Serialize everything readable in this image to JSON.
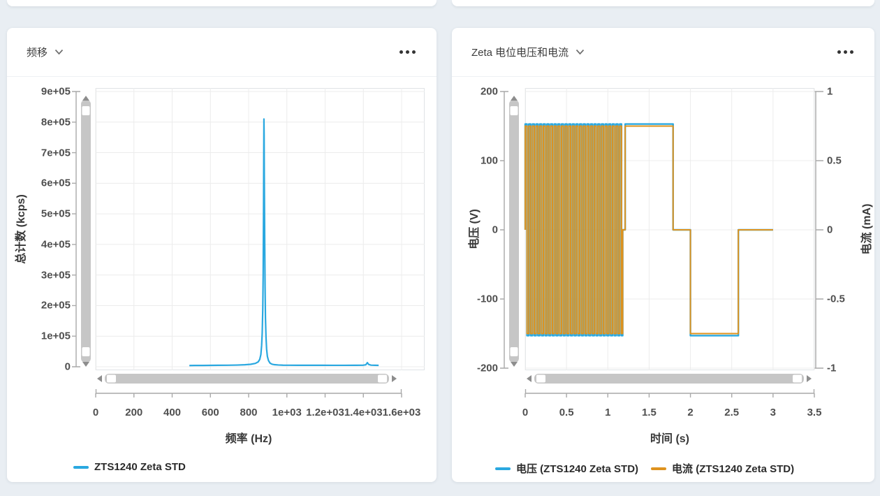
{
  "page": {
    "background": "#e9eef3",
    "card_background": "#ffffff"
  },
  "left_card": {
    "title": "频移"
  },
  "right_card": {
    "title": "Zeta 电位电压和电流"
  },
  "colors": {
    "blue_series": "#2aa8e0",
    "orange_series": "#de921e",
    "grid": "#ececec",
    "axis": "#a9a9a9"
  },
  "chart_data": [
    {
      "type": "line",
      "panel_title": "频移",
      "xlabel": "频率 (Hz)",
      "ylabel": "总计数 (kcps)",
      "xlim": [
        0,
        1600
      ],
      "ylim": [
        0,
        900000
      ],
      "grid": true,
      "legend_position": "bottom-left",
      "x_axis": {
        "tick_values": [
          0,
          200,
          400,
          600,
          800,
          1000,
          1200,
          1400,
          1600
        ],
        "tick_labels": [
          "0",
          "200",
          "400",
          "600",
          "800",
          "1e+03",
          "1.2e+03",
          "1.4e+03",
          "1.6e+03"
        ]
      },
      "y_axis_left": {
        "tick_values": [
          900000,
          800000,
          700000,
          600000,
          500000,
          400000,
          300000,
          200000,
          100000,
          0
        ],
        "tick_labels": [
          "9e+05",
          "8e+05",
          "7e+05",
          "6e+05",
          "5e+05",
          "4e+05",
          "3e+05",
          "2e+05",
          "1e+05",
          "0"
        ]
      },
      "legend": [
        {
          "label": "ZTS1240 Zeta STD",
          "color": "#2aa8e0"
        }
      ],
      "series": [
        {
          "name": "ZTS1240 Zeta STD",
          "axis": "left",
          "color": "#2aa8e0",
          "stroke_width": 2.2,
          "peak": {
            "x": 880,
            "y": 810000
          },
          "points": [
            [
              490,
              4000
            ],
            [
              520,
              4200
            ],
            [
              560,
              4300
            ],
            [
              600,
              4500
            ],
            [
              640,
              4800
            ],
            [
              690,
              5000
            ],
            [
              740,
              5600
            ],
            [
              780,
              6500
            ],
            [
              810,
              8000
            ],
            [
              835,
              11000
            ],
            [
              850,
              16000
            ],
            [
              858,
              24000
            ],
            [
              864,
              40000
            ],
            [
              868,
              70000
            ],
            [
              871,
              110000
            ],
            [
              874,
              190000
            ],
            [
              876,
              300000
            ],
            [
              878,
              520000
            ],
            [
              879,
              680000
            ],
            [
              880,
              810000
            ],
            [
              881,
              760000
            ],
            [
              882,
              620000
            ],
            [
              884,
              420000
            ],
            [
              886,
              260000
            ],
            [
              888,
              160000
            ],
            [
              891,
              95000
            ],
            [
              894,
              58000
            ],
            [
              898,
              34000
            ],
            [
              904,
              20000
            ],
            [
              912,
              12000
            ],
            [
              922,
              8500
            ],
            [
              935,
              6800
            ],
            [
              955,
              5800
            ],
            [
              980,
              5200
            ],
            [
              1010,
              5000
            ],
            [
              1060,
              4900
            ],
            [
              1120,
              4800
            ],
            [
              1180,
              4800
            ],
            [
              1240,
              4700
            ],
            [
              1300,
              4700
            ],
            [
              1360,
              4800
            ],
            [
              1400,
              5200
            ],
            [
              1413,
              6500
            ],
            [
              1421,
              13500
            ],
            [
              1428,
              7500
            ],
            [
              1440,
              5300
            ],
            [
              1460,
              4800
            ],
            [
              1480,
              4500
            ]
          ]
        }
      ]
    },
    {
      "type": "line",
      "panel_title": "Zeta 电位电压和电流",
      "xlabel": "时间 (s)",
      "ylabel_left": "电压 (V)",
      "ylabel_right": "电流 (mA)",
      "xlim": [
        0,
        3.5
      ],
      "ylim_left": [
        -200,
        200
      ],
      "ylim_right": [
        -1,
        1
      ],
      "grid": true,
      "legend_position": "bottom-center",
      "x_axis": {
        "tick_values": [
          0,
          0.5,
          1,
          1.5,
          2,
          2.5,
          3,
          3.5
        ],
        "tick_labels": [
          "0",
          "0.5",
          "1",
          "1.5",
          "2",
          "2.5",
          "3",
          "3.5"
        ]
      },
      "y_axis_left": {
        "tick_values": [
          200,
          100,
          0,
          -100,
          -200
        ],
        "tick_labels": [
          "200",
          "100",
          "0",
          "-100",
          "-200"
        ]
      },
      "y_axis_right": {
        "tick_values": [
          1,
          0.5,
          0,
          -0.5,
          -1
        ],
        "tick_labels": [
          "1",
          "0.5",
          "0",
          "-0.5",
          "-1"
        ]
      },
      "legend": [
        {
          "label": "电压 (ZTS1240 Zeta STD)",
          "color": "#2aa8e0"
        },
        {
          "label": "电流 (ZTS1240 Zeta STD)",
          "color": "#de921e"
        }
      ],
      "series": [
        {
          "name": "电压",
          "axis": "left",
          "color": "#2aa8e0",
          "stroke_width": 2.4,
          "segments": [
            {
              "type": "square_wave",
              "t": [
                0,
                1.18
              ],
              "amplitude": 153,
              "period": 0.044
            },
            {
              "type": "level",
              "t": [
                1.18,
                1.21
              ],
              "value": 0
            },
            {
              "type": "level",
              "t": [
                1.21,
                1.79
              ],
              "value": 153
            },
            {
              "type": "level",
              "t": [
                1.79,
                2.0
              ],
              "value": 0
            },
            {
              "type": "level",
              "t": [
                2.0,
                2.58
              ],
              "value": -153
            },
            {
              "type": "level",
              "t": [
                2.58,
                3.0
              ],
              "value": 0
            }
          ]
        },
        {
          "name": "电流",
          "axis": "right",
          "color": "#de921e",
          "stroke_width": 2,
          "segments": [
            {
              "type": "square_wave",
              "t": [
                0,
                1.18
              ],
              "amplitude": 0.75,
              "period": 0.044
            },
            {
              "type": "level",
              "t": [
                1.18,
                1.21
              ],
              "value": 0
            },
            {
              "type": "level",
              "t": [
                1.21,
                1.79
              ],
              "value": 0.75
            },
            {
              "type": "level",
              "t": [
                1.79,
                2.0
              ],
              "value": 0
            },
            {
              "type": "level",
              "t": [
                2.0,
                2.58
              ],
              "value": -0.75
            },
            {
              "type": "level",
              "t": [
                2.58,
                3.0
              ],
              "value": 0
            }
          ]
        }
      ]
    }
  ]
}
